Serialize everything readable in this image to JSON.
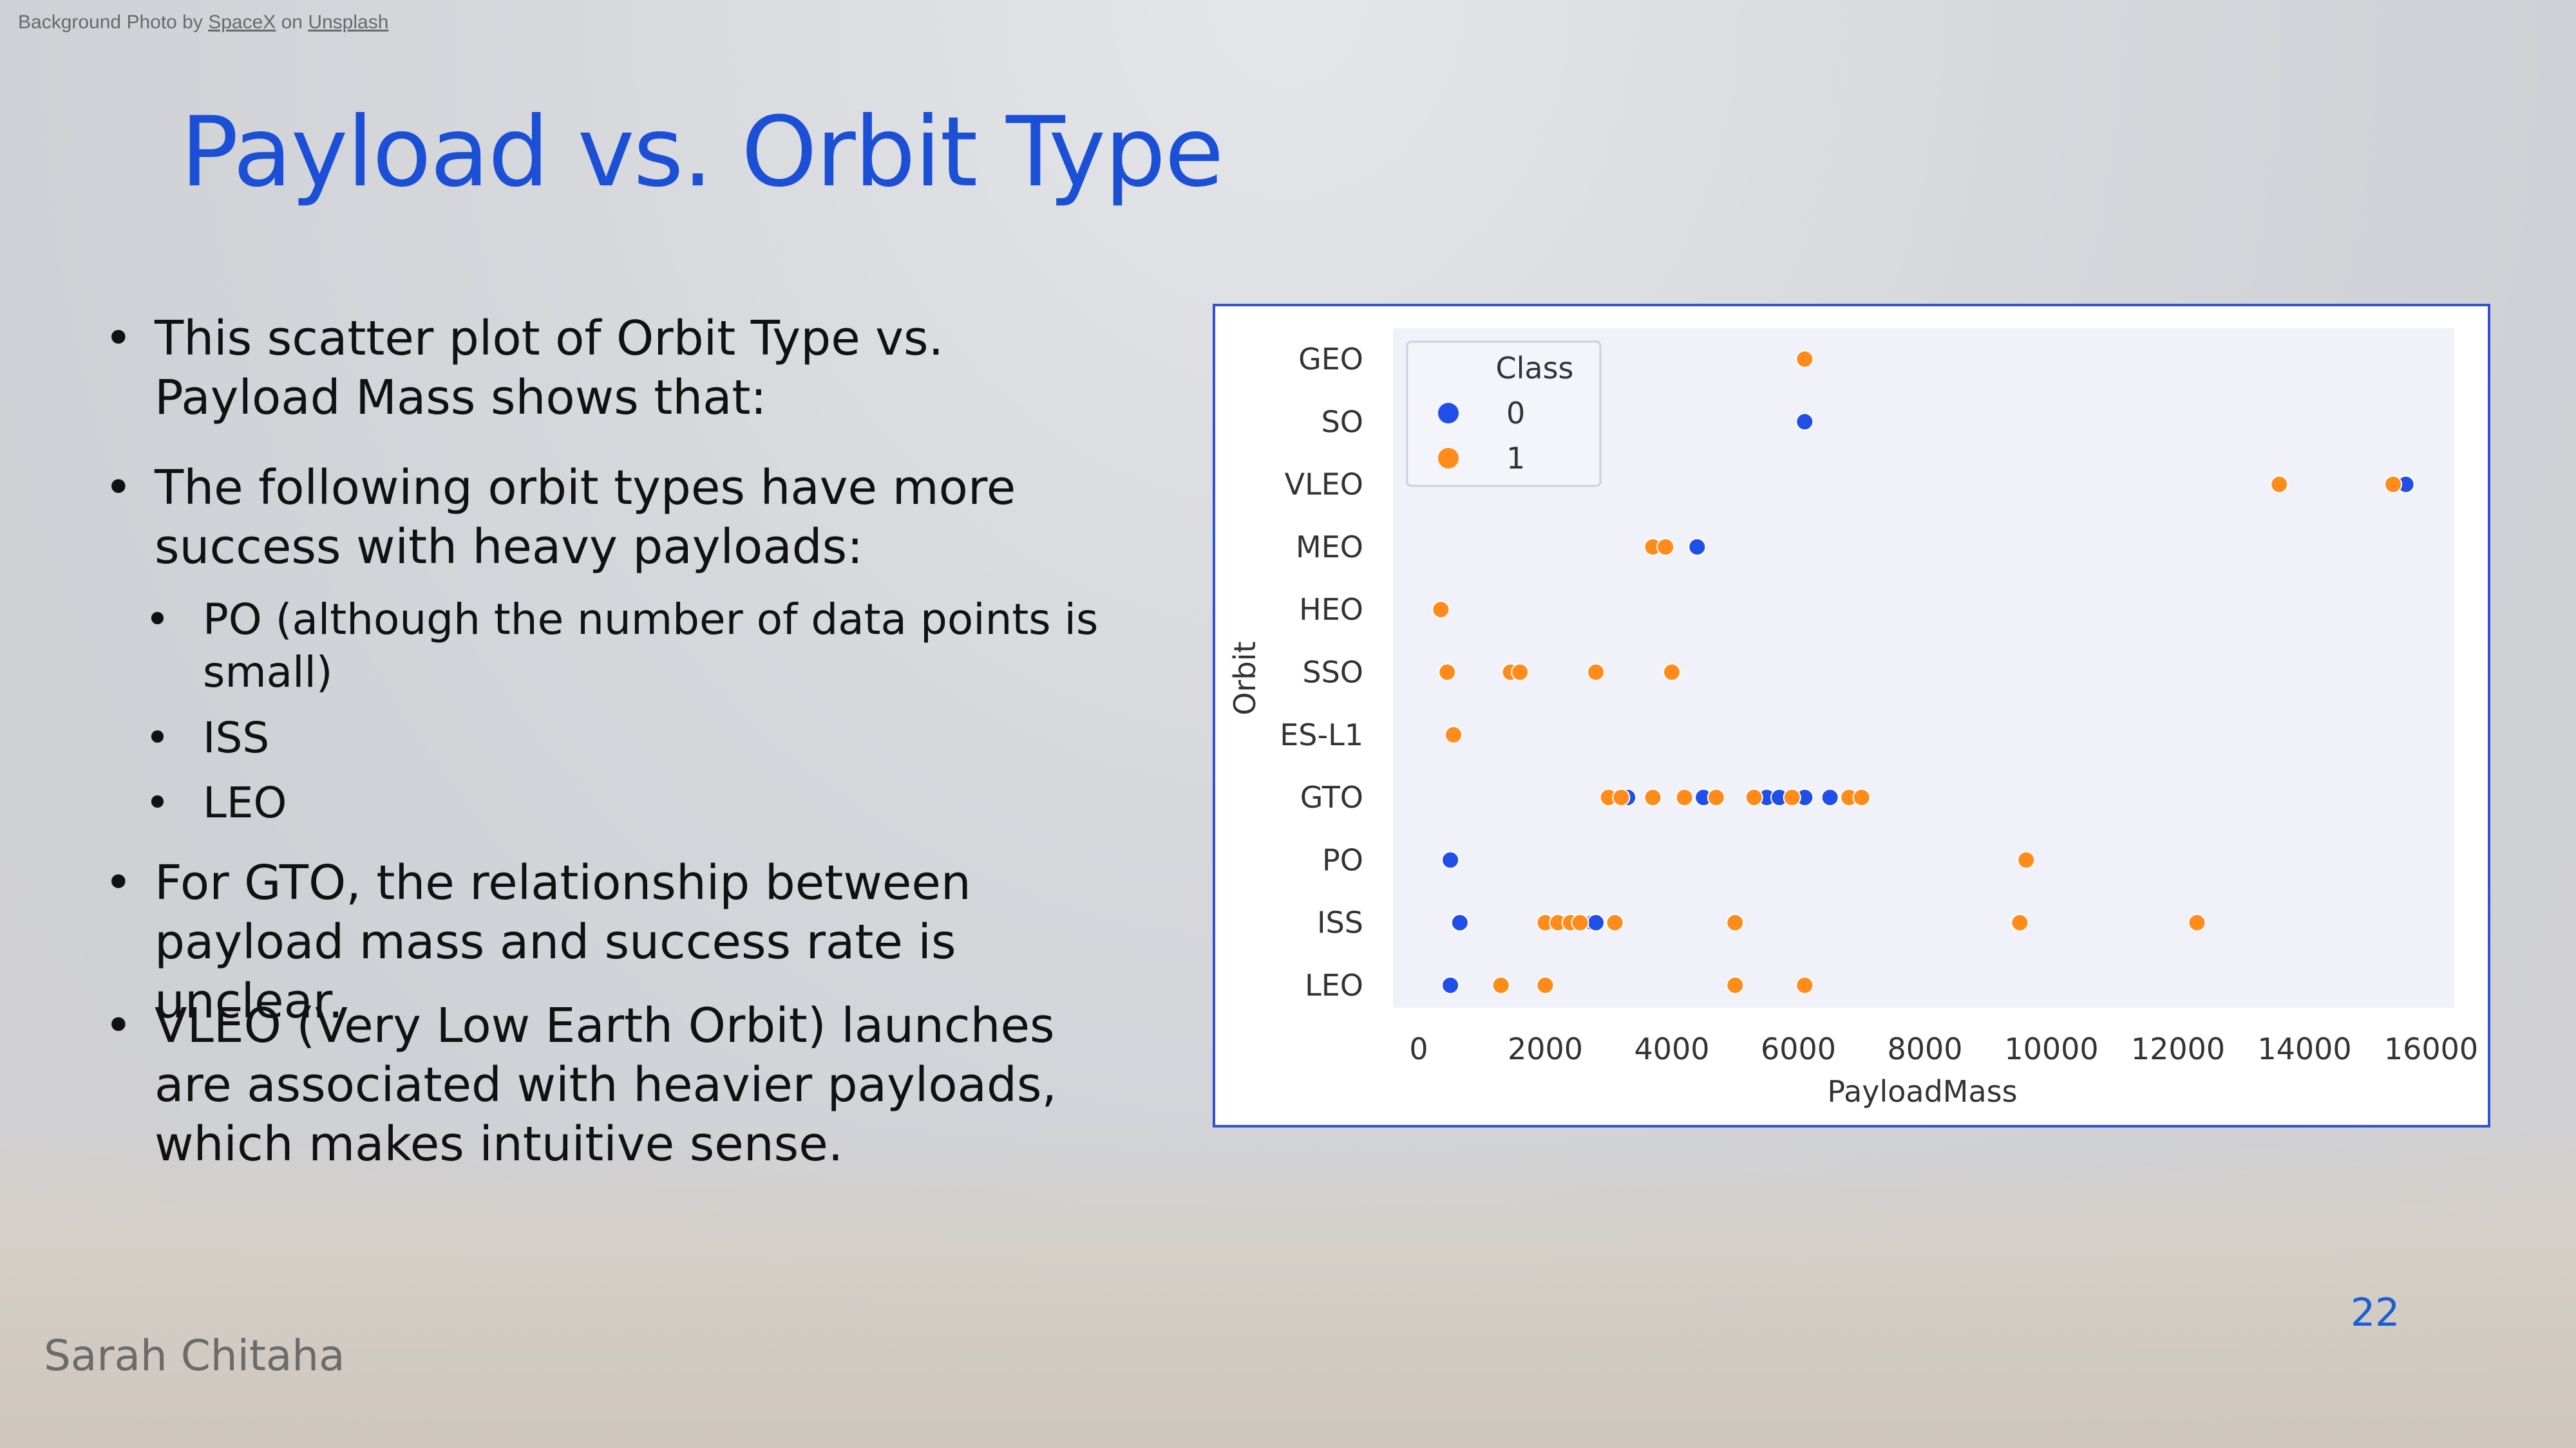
{
  "credit": {
    "prefix": "Background Photo by ",
    "author": "SpaceX",
    "middle": " on ",
    "site": "Unsplash"
  },
  "title": "Payload vs. Orbit Type",
  "bullets": [
    {
      "level": 1,
      "text": "This scatter plot of Orbit Type vs. Payload Mass shows that:"
    },
    {
      "level": 1,
      "text": "The following orbit types have more success with heavy payloads:"
    },
    {
      "level": 2,
      "text": "PO (although the number of data points is small)"
    },
    {
      "level": 2,
      "text": "ISS"
    },
    {
      "level": 2,
      "text": "LEO"
    },
    {
      "level": 1,
      "text": "For GTO, the relationship between payload mass and success rate is unclear."
    },
    {
      "level": 1,
      "text": "VLEO (Very Low Earth Orbit) launches are associated with heavier payloads, which makes intuitive sense."
    }
  ],
  "footer": {
    "author": "Sarah Chitaha",
    "page": "22"
  },
  "colors": {
    "title": "#1b4fd6",
    "class0": "#1f4fe8",
    "class1": "#ff8c1a",
    "frame": "#2f52d8"
  },
  "chart_data": {
    "type": "scatter",
    "xlabel": "PayloadMass",
    "ylabel": "Orbit",
    "xlim": [
      0,
      16000
    ],
    "xticks": [
      "0",
      "2000",
      "4000",
      "6000",
      "8000",
      "10000",
      "12000",
      "14000",
      "16000"
    ],
    "categories": [
      "GEO",
      "SO",
      "VLEO",
      "MEO",
      "HEO",
      "SSO",
      "ES-L1",
      "GTO",
      "PO",
      "ISS",
      "LEO"
    ],
    "legend": {
      "title": "Class",
      "placement": "top-left",
      "entries": [
        "0",
        "1"
      ]
    },
    "grid": false,
    "series": [
      {
        "name": "0",
        "points": [
          {
            "x": 6100,
            "y": "SO"
          },
          {
            "x": 15600,
            "y": "VLEO"
          },
          {
            "x": 4400,
            "y": "MEO"
          },
          {
            "x": 3300,
            "y": "GTO"
          },
          {
            "x": 4500,
            "y": "GTO"
          },
          {
            "x": 5500,
            "y": "GTO"
          },
          {
            "x": 5700,
            "y": "GTO"
          },
          {
            "x": 6100,
            "y": "GTO"
          },
          {
            "x": 6500,
            "y": "GTO"
          },
          {
            "x": 500,
            "y": "PO"
          },
          {
            "x": 650,
            "y": "ISS"
          },
          {
            "x": 2750,
            "y": "ISS"
          },
          {
            "x": 2800,
            "y": "ISS"
          },
          {
            "x": 500,
            "y": "LEO"
          }
        ]
      },
      {
        "name": "1",
        "points": [
          {
            "x": 6100,
            "y": "GEO"
          },
          {
            "x": 13600,
            "y": "VLEO"
          },
          {
            "x": 15400,
            "y": "VLEO"
          },
          {
            "x": 3700,
            "y": "MEO"
          },
          {
            "x": 3900,
            "y": "MEO"
          },
          {
            "x": 350,
            "y": "HEO"
          },
          {
            "x": 450,
            "y": "SSO"
          },
          {
            "x": 1450,
            "y": "SSO"
          },
          {
            "x": 1600,
            "y": "SSO"
          },
          {
            "x": 2800,
            "y": "SSO"
          },
          {
            "x": 4000,
            "y": "SSO"
          },
          {
            "x": 550,
            "y": "ES-L1"
          },
          {
            "x": 3000,
            "y": "GTO"
          },
          {
            "x": 3200,
            "y": "GTO"
          },
          {
            "x": 3700,
            "y": "GTO"
          },
          {
            "x": 4200,
            "y": "GTO"
          },
          {
            "x": 4700,
            "y": "GTO"
          },
          {
            "x": 5300,
            "y": "GTO"
          },
          {
            "x": 5900,
            "y": "GTO"
          },
          {
            "x": 6800,
            "y": "GTO"
          },
          {
            "x": 7000,
            "y": "GTO"
          },
          {
            "x": 9600,
            "y": "PO"
          },
          {
            "x": 2000,
            "y": "ISS"
          },
          {
            "x": 2200,
            "y": "ISS"
          },
          {
            "x": 2400,
            "y": "ISS"
          },
          {
            "x": 2550,
            "y": "ISS"
          },
          {
            "x": 3100,
            "y": "ISS"
          },
          {
            "x": 5000,
            "y": "ISS"
          },
          {
            "x": 9500,
            "y": "ISS"
          },
          {
            "x": 12300,
            "y": "ISS"
          },
          {
            "x": 1300,
            "y": "LEO"
          },
          {
            "x": 2000,
            "y": "LEO"
          },
          {
            "x": 5000,
            "y": "LEO"
          },
          {
            "x": 6100,
            "y": "LEO"
          }
        ]
      }
    ]
  }
}
